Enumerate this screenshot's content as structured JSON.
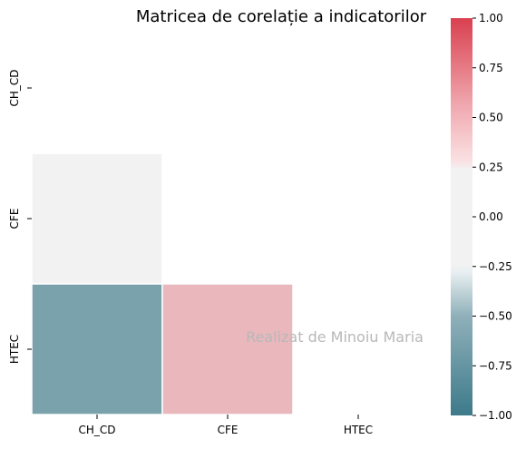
{
  "chart_data": {
    "type": "heatmap",
    "title": "Matricea de corelație a indicatorilor",
    "xlabel": "",
    "ylabel": "",
    "x_categories": [
      "CH_CD",
      "CFE",
      "HTEC"
    ],
    "y_categories": [
      "CH_CD",
      "CFE",
      "HTEC"
    ],
    "cells": [
      {
        "row": "CFE",
        "col": "CH_CD",
        "value": 0.05
      },
      {
        "row": "HTEC",
        "col": "CH_CD",
        "value": -0.75
      },
      {
        "row": "HTEC",
        "col": "CFE",
        "value": 0.5
      }
    ],
    "mask": "upper triangle incl. diagonal",
    "vmin": -1.0,
    "vmax": 1.0,
    "colorbar": {
      "ticks": [
        1.0,
        0.75,
        0.5,
        0.25,
        0.0,
        -0.25,
        -0.5,
        -0.75,
        -1.0
      ],
      "tick_labels": [
        "1.00",
        "0.75",
        "0.50",
        "0.25",
        "0.00",
        "−0.25",
        "−0.50",
        "−0.75",
        "−1.00"
      ],
      "colors": {
        "low": "#3d7a8a",
        "center": "#f2f2f2",
        "high": "#d9404f"
      }
    },
    "annotation": "Realizat de Minoiu Maria",
    "grid": false,
    "legend": "colorbar-right"
  }
}
